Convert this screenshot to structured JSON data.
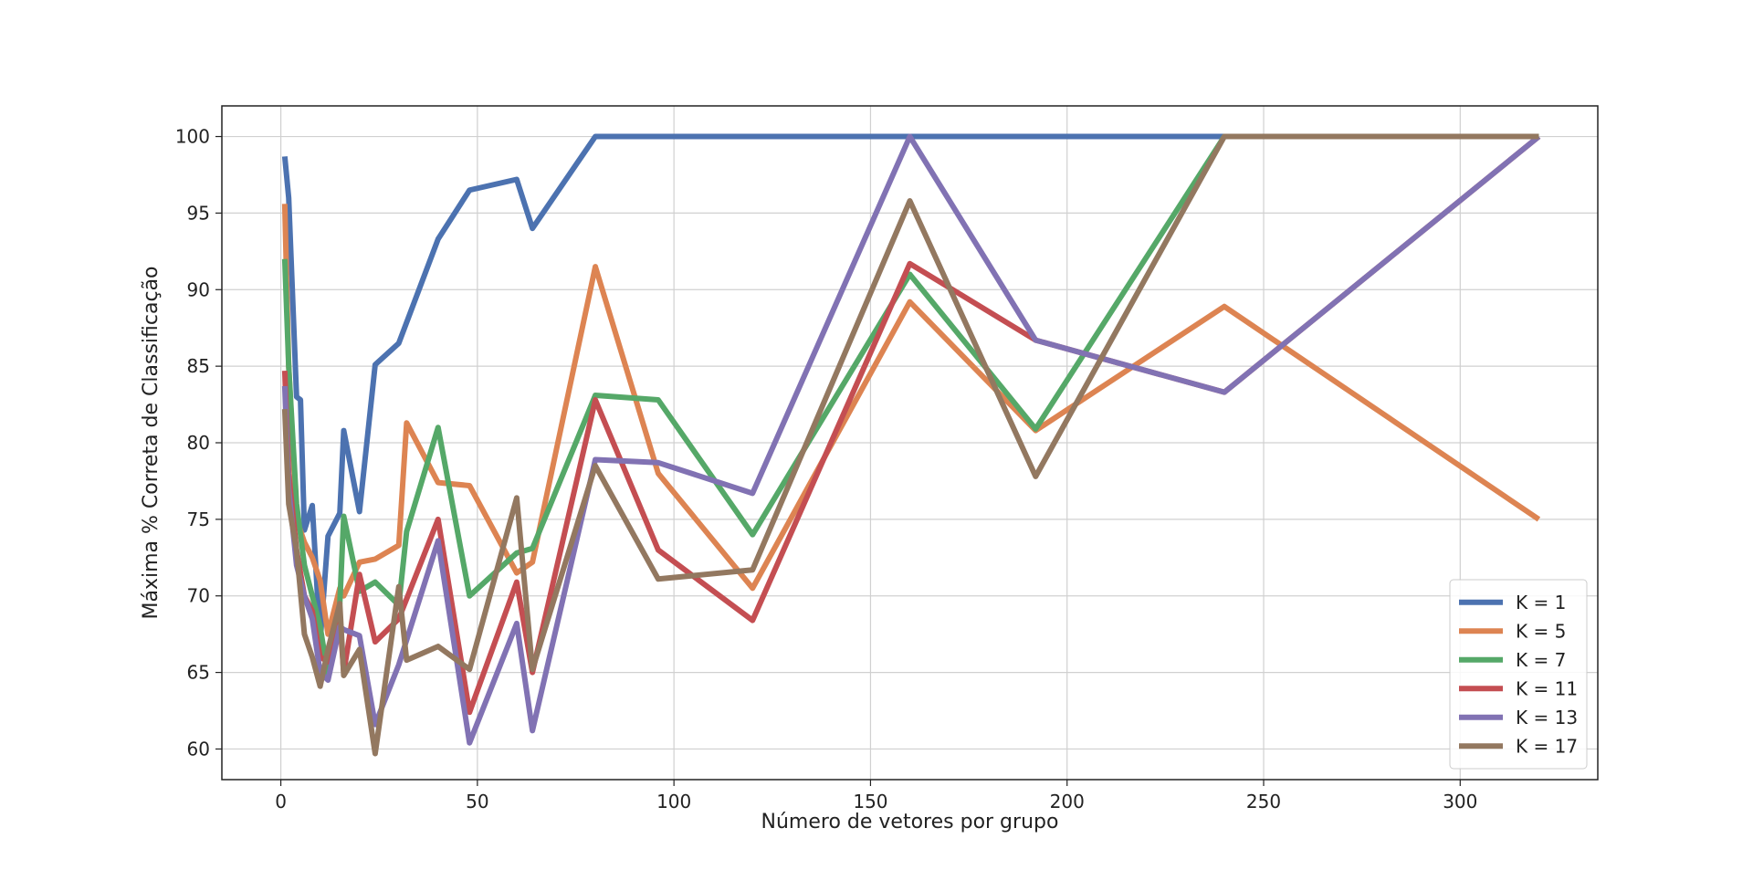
{
  "chart_data": {
    "type": "line",
    "title": "",
    "xlabel": "Número de vetores por grupo",
    "ylabel": "Máxima % Correta de Classificação",
    "xlim": [
      -15,
      335
    ],
    "ylim": [
      58,
      102
    ],
    "xticks": [
      0,
      50,
      100,
      150,
      200,
      250,
      300
    ],
    "yticks": [
      60,
      65,
      70,
      75,
      80,
      85,
      90,
      95,
      100
    ],
    "grid": true,
    "legend_position": "lower-right",
    "series": [
      {
        "name": "K = 1",
        "color": "#4c72b0",
        "points": [
          [
            1,
            98.7
          ],
          [
            2,
            96
          ],
          [
            4,
            83
          ],
          [
            5,
            82.8
          ],
          [
            6,
            74.3
          ],
          [
            8,
            75.9
          ],
          [
            10,
            67
          ],
          [
            12,
            73.9
          ],
          [
            15,
            75.4
          ],
          [
            16,
            80.8
          ],
          [
            20,
            75.5
          ],
          [
            24,
            85.1
          ],
          [
            30,
            86.5
          ],
          [
            40,
            93.3
          ],
          [
            48,
            96.5
          ],
          [
            60,
            97.2
          ],
          [
            64,
            94
          ],
          [
            80,
            100
          ],
          [
            96,
            100
          ],
          [
            120,
            100
          ],
          [
            160,
            100
          ],
          [
            192,
            100
          ],
          [
            240,
            100
          ],
          [
            320,
            100
          ]
        ]
      },
      {
        "name": "K = 5",
        "color": "#dd8452",
        "points": [
          [
            1,
            95.6
          ],
          [
            2,
            85
          ],
          [
            4,
            75
          ],
          [
            6,
            73.5
          ],
          [
            8,
            72.5
          ],
          [
            10,
            71
          ],
          [
            12,
            67.5
          ],
          [
            15,
            70.5
          ],
          [
            16,
            70
          ],
          [
            20,
            72.2
          ],
          [
            24,
            72.4
          ],
          [
            30,
            73.3
          ],
          [
            32,
            81.3
          ],
          [
            40,
            77.4
          ],
          [
            48,
            77.2
          ],
          [
            60,
            71.5
          ],
          [
            64,
            72.2
          ],
          [
            80,
            91.5
          ],
          [
            96,
            78
          ],
          [
            120,
            70.5
          ],
          [
            160,
            89.2
          ],
          [
            192,
            80.8
          ],
          [
            240,
            88.9
          ],
          [
            320,
            75
          ]
        ]
      },
      {
        "name": "K = 7",
        "color": "#55a868",
        "points": [
          [
            1,
            92
          ],
          [
            2,
            85
          ],
          [
            4,
            76
          ],
          [
            6,
            72
          ],
          [
            8,
            70
          ],
          [
            10,
            68
          ],
          [
            12,
            64.8
          ],
          [
            15,
            69.5
          ],
          [
            16,
            75.2
          ],
          [
            20,
            70.3
          ],
          [
            24,
            70.9
          ],
          [
            30,
            69.4
          ],
          [
            32,
            74.2
          ],
          [
            40,
            81
          ],
          [
            48,
            70
          ],
          [
            60,
            72.8
          ],
          [
            64,
            73.1
          ],
          [
            80,
            83.1
          ],
          [
            96,
            82.8
          ],
          [
            120,
            74
          ],
          [
            160,
            91
          ],
          [
            192,
            80.9
          ],
          [
            240,
            100
          ],
          [
            320,
            100
          ]
        ]
      },
      {
        "name": "K = 11",
        "color": "#c44e52",
        "points": [
          [
            1,
            84.7
          ],
          [
            2,
            78
          ],
          [
            4,
            73
          ],
          [
            6,
            70
          ],
          [
            8,
            69
          ],
          [
            10,
            66
          ],
          [
            12,
            65.7
          ],
          [
            15,
            68.5
          ],
          [
            16,
            65
          ],
          [
            20,
            71.4
          ],
          [
            24,
            67
          ],
          [
            30,
            68.5
          ],
          [
            40,
            75
          ],
          [
            48,
            62.4
          ],
          [
            60,
            70.9
          ],
          [
            64,
            65
          ],
          [
            80,
            82.8
          ],
          [
            96,
            73
          ],
          [
            120,
            68.4
          ],
          [
            160,
            91.7
          ],
          [
            192,
            86.7
          ],
          [
            240,
            83.3
          ],
          [
            320,
            100
          ]
        ]
      },
      {
        "name": "K = 13",
        "color": "#8172b3",
        "points": [
          [
            1,
            83.7
          ],
          [
            2,
            77
          ],
          [
            4,
            72
          ],
          [
            6,
            70
          ],
          [
            8,
            68.5
          ],
          [
            10,
            65
          ],
          [
            12,
            64.5
          ],
          [
            15,
            68
          ],
          [
            16,
            67.8
          ],
          [
            20,
            67.4
          ],
          [
            24,
            61.6
          ],
          [
            30,
            65.5
          ],
          [
            40,
            73.6
          ],
          [
            48,
            60.4
          ],
          [
            60,
            68.2
          ],
          [
            64,
            61.2
          ],
          [
            80,
            78.9
          ],
          [
            96,
            78.7
          ],
          [
            120,
            76.7
          ],
          [
            160,
            100
          ],
          [
            192,
            86.7
          ],
          [
            240,
            83.3
          ],
          [
            320,
            100
          ]
        ]
      },
      {
        "name": "K = 17",
        "color": "#937860",
        "points": [
          [
            1,
            82.2
          ],
          [
            2,
            76
          ],
          [
            4,
            73
          ],
          [
            6,
            67.5
          ],
          [
            8,
            66
          ],
          [
            10,
            64.1
          ],
          [
            12,
            66.5
          ],
          [
            15,
            69.5
          ],
          [
            16,
            64.8
          ],
          [
            20,
            66.5
          ],
          [
            24,
            59.7
          ],
          [
            30,
            70.6
          ],
          [
            32,
            65.8
          ],
          [
            40,
            66.7
          ],
          [
            48,
            65.2
          ],
          [
            60,
            76.4
          ],
          [
            64,
            65.2
          ],
          [
            80,
            78.5
          ],
          [
            96,
            71.1
          ],
          [
            120,
            71.7
          ],
          [
            160,
            95.8
          ],
          [
            192,
            77.8
          ],
          [
            240,
            100
          ],
          [
            320,
            100
          ]
        ]
      }
    ]
  }
}
